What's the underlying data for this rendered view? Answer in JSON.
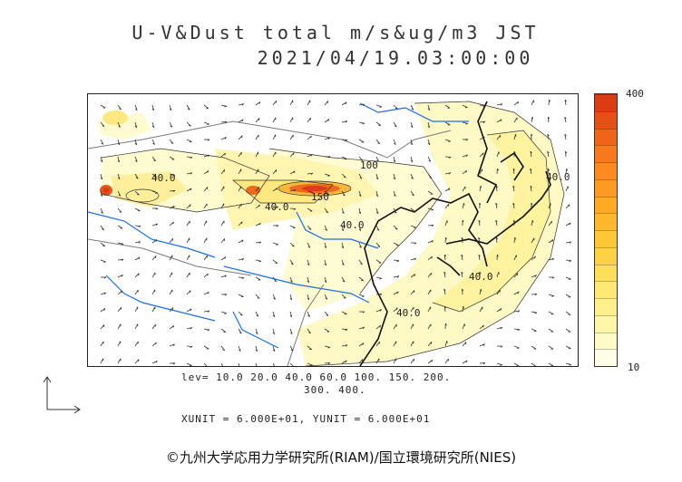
{
  "header": {
    "title": "U-V&Dust total m/s&ug/m3 JST",
    "timestamp": "2021/04/19.03:00:00"
  },
  "legend": {
    "max_label": "400",
    "min_label": "10",
    "colors": [
      "#ffffe8",
      "#fffbc4",
      "#fff6a8",
      "#fff08c",
      "#ffe873",
      "#ffde5a",
      "#ffd245",
      "#ffc733",
      "#ffb92a",
      "#ffaa24",
      "#ff9a20",
      "#fd8a1e",
      "#f8781c",
      "#f06419",
      "#e65017",
      "#dc3c14"
    ]
  },
  "levels": {
    "line1": "lev= 10.0 20.0 40.0 60.0 100. 150. 200.",
    "line2": "300. 400."
  },
  "units": "XUNIT = 6.000E+01, YUNIT = 6.000E+01",
  "map": {
    "contour_labels": [
      "40.0",
      "40.0",
      "150",
      "40.0",
      "40.0",
      "100",
      "40.0",
      "40.0"
    ],
    "colors": {
      "coast": "#111111",
      "river": "#1e6fe0",
      "border": "#7a7a7a",
      "arrow": "#333333"
    }
  },
  "credit": "©九州大学応用力学研究所(RIAM)/国立環境研究所(NIES)"
}
